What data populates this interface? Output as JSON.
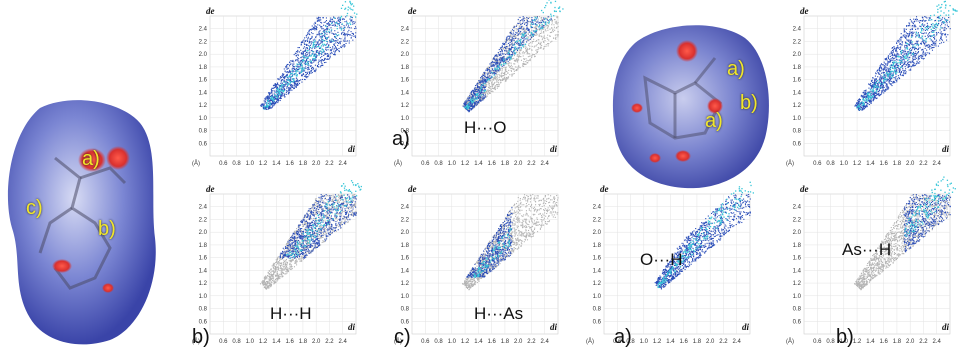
{
  "axis": {
    "de_label": "de",
    "di_label": "di",
    "unit": "(Å)",
    "yticks": [
      "2.4",
      "2.2",
      "2.0",
      "1.8",
      "1.6",
      "1.4",
      "1.2",
      "1.0",
      "0.8",
      "0.6"
    ],
    "xticks": [
      "0.6",
      "0.8",
      "1.0",
      "1.2",
      "1.4",
      "1.6",
      "1.8",
      "2.0",
      "2.2",
      "2.4"
    ]
  },
  "surfaces": [
    {
      "labels": [
        "a)",
        "b)",
        "c)"
      ]
    },
    {
      "labels": [
        "a)",
        "b)",
        "a)"
      ]
    }
  ],
  "panels": [
    {
      "caption": "",
      "contact": ""
    },
    {
      "caption": "a)",
      "contact": "H···O"
    },
    {
      "caption": "",
      "contact": ""
    },
    {
      "caption": "b)",
      "contact": "H···H"
    },
    {
      "caption": "c)",
      "contact": "H···As"
    },
    {
      "caption": "a)",
      "contact": "O···H"
    },
    {
      "caption": "b)",
      "contact": "As···H"
    }
  ],
  "colors": {
    "surface": "#5b67c4",
    "hot_spot": "#e0302f",
    "fingerprint": "#2a4db8",
    "fingerprint_core": "#38c6d8",
    "background_points": "#b4b4b4",
    "label": "#f1e62a"
  }
}
